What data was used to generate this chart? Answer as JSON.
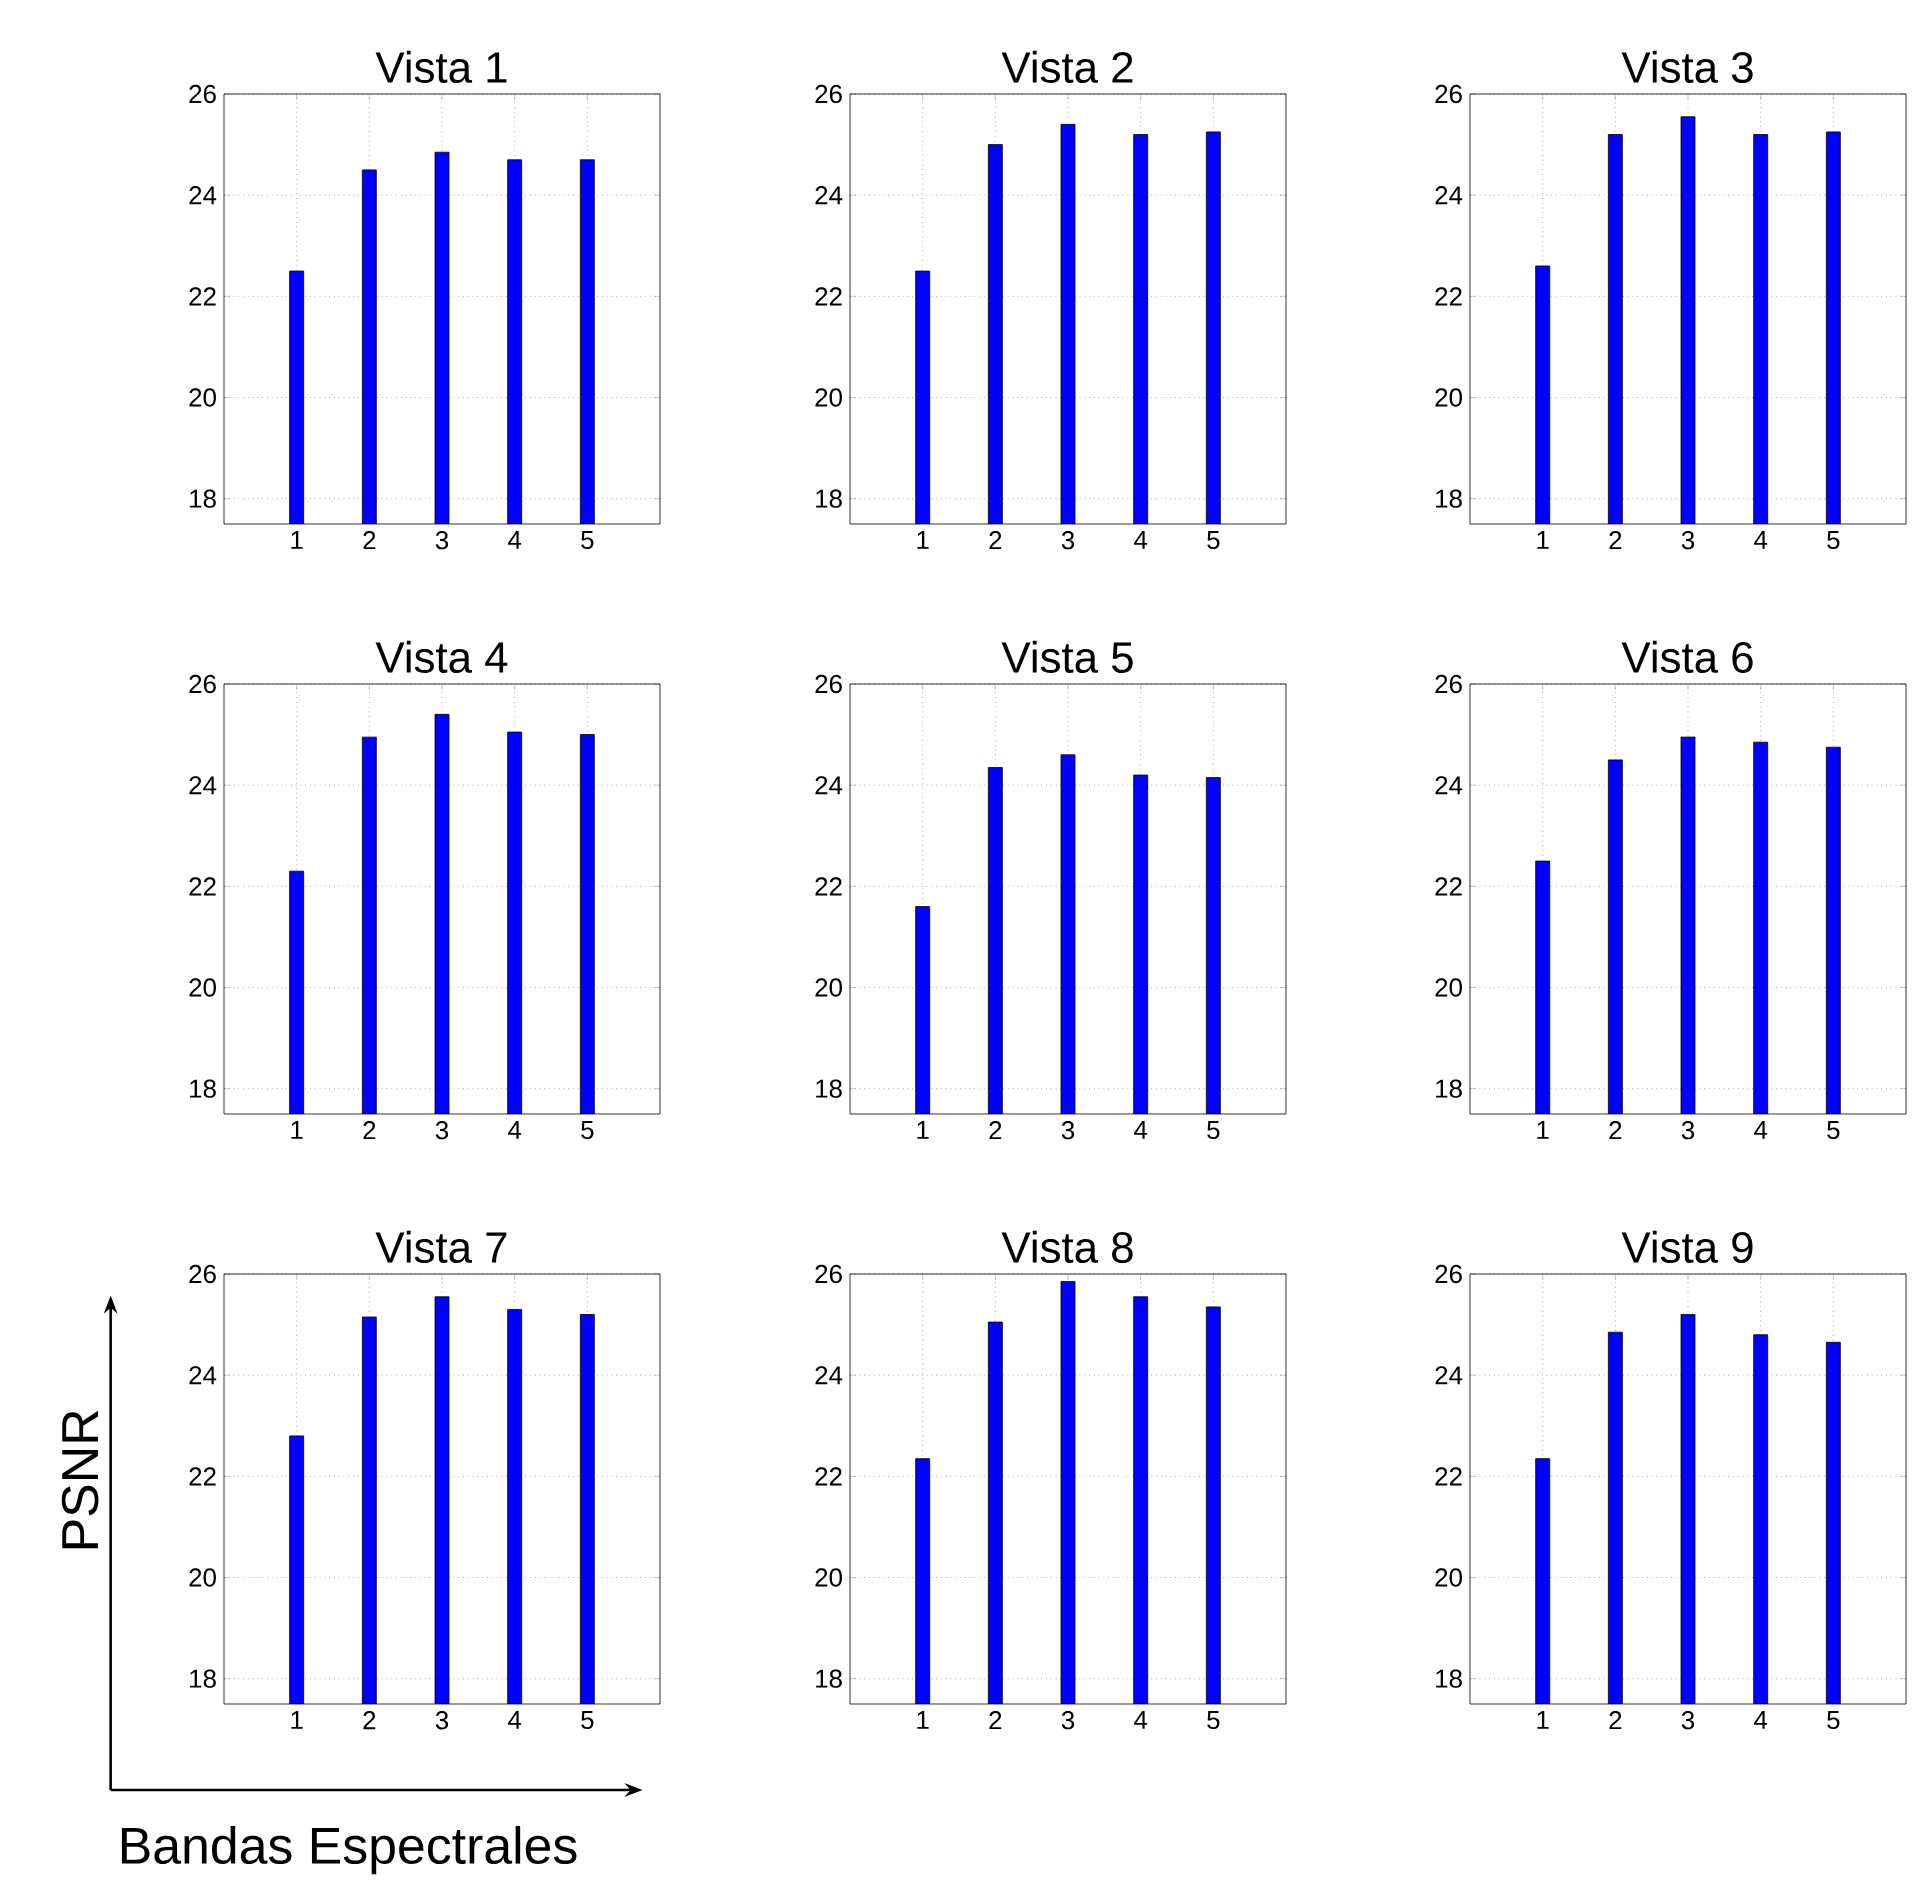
{
  "chart_data": [
    {
      "type": "bar",
      "title": "Vista 1",
      "categories": [
        "1",
        "2",
        "3",
        "4",
        "5"
      ],
      "values": [
        22.5,
        24.5,
        24.85,
        24.7,
        24.7
      ],
      "color": "#0000ff",
      "ylim": [
        17.5,
        26
      ],
      "yticks": [
        18,
        20,
        22,
        24,
        26
      ],
      "grid": true
    },
    {
      "type": "bar",
      "title": "Vista 2",
      "categories": [
        "1",
        "2",
        "3",
        "4",
        "5"
      ],
      "values": [
        22.5,
        25.0,
        25.4,
        25.2,
        25.25
      ],
      "color": "#0000ff",
      "ylim": [
        17.5,
        26
      ],
      "yticks": [
        18,
        20,
        22,
        24,
        26
      ],
      "grid": true
    },
    {
      "type": "bar",
      "title": "Vista 3",
      "categories": [
        "1",
        "2",
        "3",
        "4",
        "5"
      ],
      "values": [
        22.6,
        25.2,
        25.55,
        25.2,
        25.25
      ],
      "color": "#0000ff",
      "ylim": [
        17.5,
        26
      ],
      "yticks": [
        18,
        20,
        22,
        24,
        26
      ],
      "grid": true
    },
    {
      "type": "bar",
      "title": "Vista 4",
      "categories": [
        "1",
        "2",
        "3",
        "4",
        "5"
      ],
      "values": [
        22.3,
        24.95,
        25.4,
        25.05,
        25.0
      ],
      "color": "#0000ff",
      "ylim": [
        17.5,
        26
      ],
      "yticks": [
        18,
        20,
        22,
        24,
        26
      ],
      "grid": true
    },
    {
      "type": "bar",
      "title": "Vista 5",
      "categories": [
        "1",
        "2",
        "3",
        "4",
        "5"
      ],
      "values": [
        21.6,
        24.35,
        24.6,
        24.2,
        24.15
      ],
      "color": "#0000ff",
      "ylim": [
        17.5,
        26
      ],
      "yticks": [
        18,
        20,
        22,
        24,
        26
      ],
      "grid": true
    },
    {
      "type": "bar",
      "title": "Vista 6",
      "categories": [
        "1",
        "2",
        "3",
        "4",
        "5"
      ],
      "values": [
        22.5,
        24.5,
        24.95,
        24.85,
        24.75
      ],
      "color": "#0000ff",
      "ylim": [
        17.5,
        26
      ],
      "yticks": [
        18,
        20,
        22,
        24,
        26
      ],
      "grid": true
    },
    {
      "type": "bar",
      "title": "Vista 7",
      "xlabel": "Bandas Espectrales",
      "ylabel": "PSNR",
      "categories": [
        "1",
        "2",
        "3",
        "4",
        "5"
      ],
      "values": [
        22.8,
        25.15,
        25.55,
        25.3,
        25.2
      ],
      "color": "#0000ff",
      "ylim": [
        17.5,
        26
      ],
      "yticks": [
        18,
        20,
        22,
        24,
        26
      ],
      "grid": true
    },
    {
      "type": "bar",
      "title": "Vista 8",
      "categories": [
        "1",
        "2",
        "3",
        "4",
        "5"
      ],
      "values": [
        22.35,
        25.05,
        25.85,
        25.55,
        25.35
      ],
      "color": "#0000ff",
      "ylim": [
        17.5,
        26
      ],
      "yticks": [
        18,
        20,
        22,
        24,
        26
      ],
      "grid": true
    },
    {
      "type": "bar",
      "title": "Vista 9",
      "categories": [
        "1",
        "2",
        "3",
        "4",
        "5"
      ],
      "values": [
        22.35,
        24.85,
        25.2,
        24.8,
        24.65
      ],
      "color": "#0000ff",
      "ylim": [
        17.5,
        26
      ],
      "yticks": [
        18,
        20,
        22,
        24,
        26
      ],
      "grid": true
    }
  ]
}
